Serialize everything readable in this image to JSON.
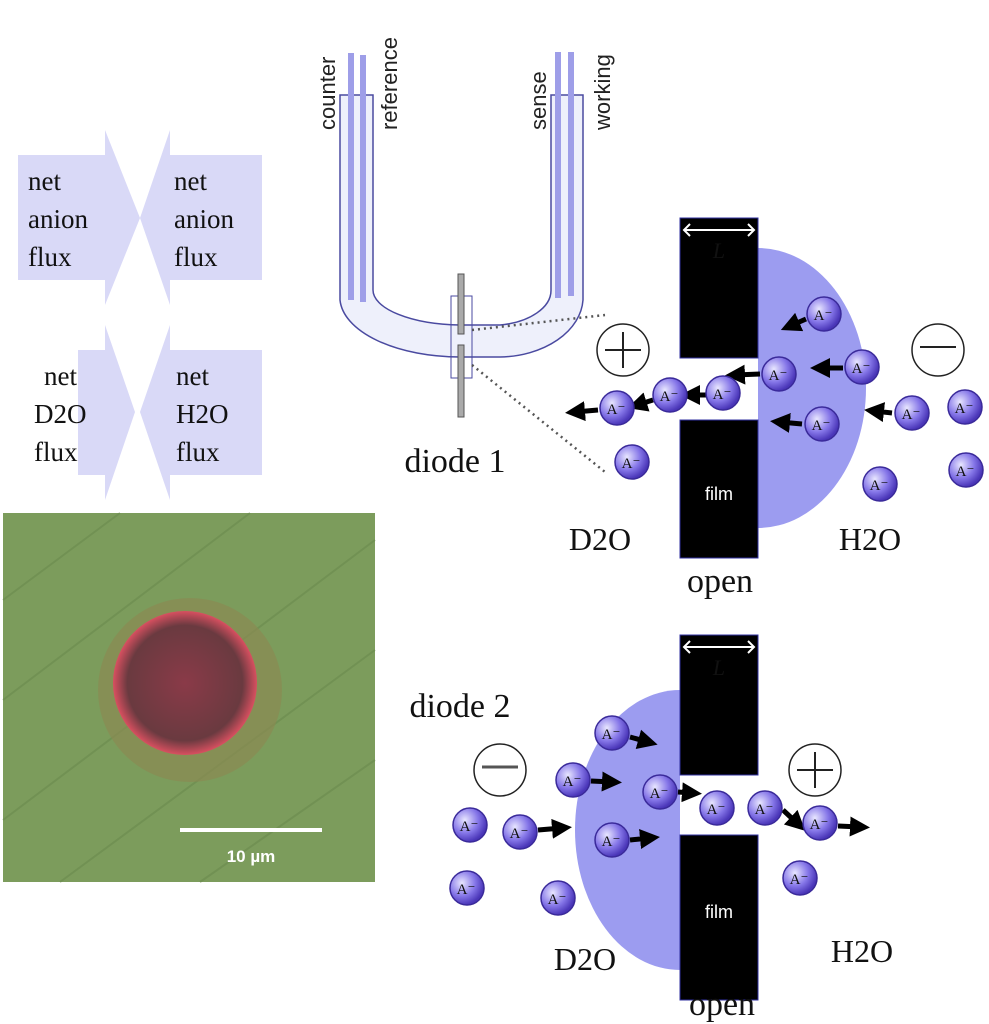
{
  "flux_arrows": {
    "top_left": [
      "net",
      "anion",
      "flux"
    ],
    "top_right": [
      "net",
      "anion",
      "flux"
    ],
    "bottom_left": [
      "net",
      "D2O",
      "flux"
    ],
    "bottom_right": [
      "net",
      "H2O",
      "flux"
    ]
  },
  "micrograph": {
    "scale_bar": "10 µm"
  },
  "cell": {
    "electrodes": [
      "counter",
      "reference",
      "sense",
      "working"
    ],
    "diode1_label": "diode 1"
  },
  "diode1": {
    "length_label": "L",
    "film_label": "film",
    "open_label": "open",
    "left_solvent": "D2O",
    "right_solvent": "H2O",
    "left_polarity": "+",
    "right_polarity": "−",
    "ion_label": "A"
  },
  "diode2": {
    "title": "diode 2",
    "length_label": "L",
    "film_label": "film",
    "open_label": "open",
    "left_solvent": "D2O",
    "right_solvent": "H2O",
    "left_polarity": "−",
    "right_polarity": "+",
    "ion_label": "A"
  },
  "colors": {
    "lavender": "#d9d9f7",
    "droplet": "#9c9cf0",
    "ion": "#6a5ad8",
    "film": "#000000",
    "micrograph_green": "#7c9c5c"
  }
}
